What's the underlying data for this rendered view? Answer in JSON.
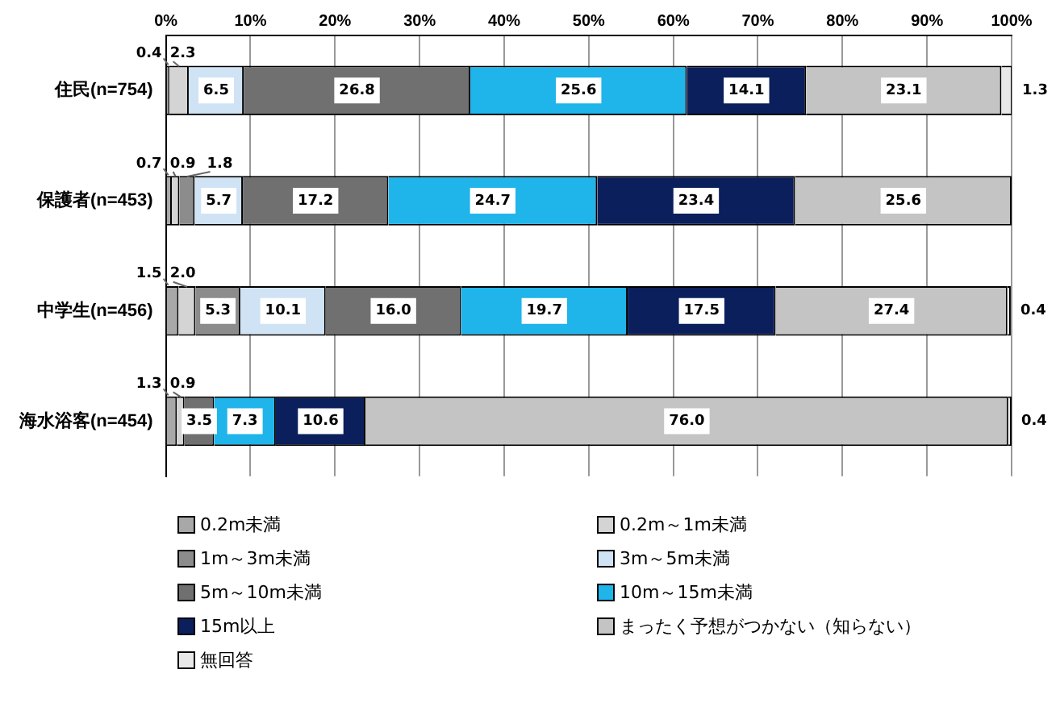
{
  "chart_data": {
    "type": "bar",
    "orientation": "horizontal",
    "stacked": true,
    "legend": "bottom",
    "grid": "x",
    "categories": [
      "住民(n=754)",
      "保護者(n=453)",
      "中学生(n=456)",
      "海水浴客(n=454)"
    ],
    "xlim": [
      0,
      100
    ],
    "xticks": [
      {
        "value": 0,
        "label": "0%"
      },
      {
        "value": 10,
        "label": "10%"
      },
      {
        "value": 20,
        "label": "20%"
      },
      {
        "value": 30,
        "label": "30%"
      },
      {
        "value": 40,
        "label": "40%"
      },
      {
        "value": 50,
        "label": "50%"
      },
      {
        "value": 60,
        "label": "60%"
      },
      {
        "value": 70,
        "label": "70%"
      },
      {
        "value": 80,
        "label": "80%"
      },
      {
        "value": 90,
        "label": "90%"
      },
      {
        "value": 100,
        "label": "100%"
      }
    ],
    "series": [
      {
        "name": "0.2m未満",
        "color": "#a8a8a8",
        "values": [
          0.4,
          0.7,
          1.5,
          1.3
        ],
        "value_labels": [
          "0.4",
          "0.7",
          "1.5",
          "1.3"
        ]
      },
      {
        "name": "0.2m～1m未満",
        "color": "#d4d4d4",
        "values": [
          2.3,
          0.9,
          2.0,
          0.9
        ],
        "value_labels": [
          "2.3",
          "0.9",
          "2.0",
          "0.9"
        ]
      },
      {
        "name": "1m～3m未満",
        "color": "#8c8c8c",
        "values": [
          null,
          1.8,
          5.3,
          null
        ],
        "value_labels": [
          null,
          "1.8",
          "5.3",
          null
        ]
      },
      {
        "name": "3m～5m未満",
        "color": "#cfe3f5",
        "values": [
          6.5,
          5.7,
          10.1,
          null
        ],
        "value_labels": [
          "6.5",
          "5.7",
          "10.1",
          null
        ]
      },
      {
        "name": "5m～10m未満",
        "color": "#707070",
        "values": [
          26.8,
          17.2,
          16.0,
          3.5
        ],
        "value_labels": [
          "26.8",
          "17.2",
          "16.0",
          "3.5"
        ]
      },
      {
        "name": "10m～15m未満",
        "color": "#1fb4ea",
        "values": [
          25.6,
          24.7,
          19.7,
          7.3
        ],
        "value_labels": [
          "25.6",
          "24.7",
          "19.7",
          "7.3"
        ]
      },
      {
        "name": "15m以上",
        "color": "#0a1f5c",
        "values": [
          14.1,
          23.4,
          17.5,
          10.6
        ],
        "value_labels": [
          "14.1",
          "23.4",
          "17.5",
          "10.6"
        ]
      },
      {
        "name": "まったく予想がつかない（知らない）",
        "color": "#c4c4c4",
        "values": [
          23.1,
          25.6,
          27.4,
          76.0
        ],
        "value_labels": [
          "23.1",
          "25.6",
          "27.4",
          "76.0"
        ]
      },
      {
        "name": "無回答",
        "color": "#e8e8e8",
        "values": [
          1.3,
          null,
          0.4,
          0.4
        ],
        "value_labels": [
          "1.3",
          null,
          "0.4",
          "0.4"
        ]
      }
    ]
  }
}
